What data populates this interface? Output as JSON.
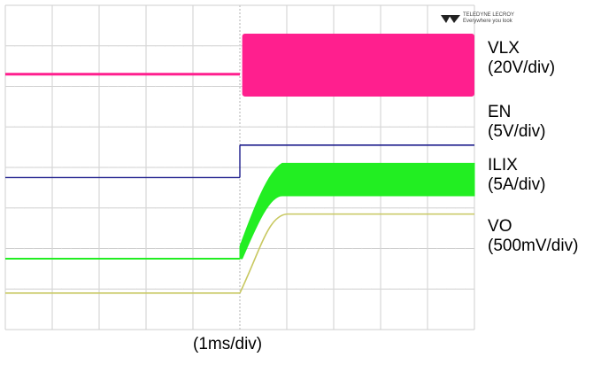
{
  "logo": {
    "brand": "TELEDYNE LECROY",
    "tagline": "Everywhere you look"
  },
  "timebase_label": "(1ms/div)",
  "channel_labels": [
    {
      "name": "VLX",
      "scale": "(20V/div)"
    },
    {
      "name": "EN",
      "scale": "(5V/div)"
    },
    {
      "name": "ILIX",
      "scale": "(5A/div)"
    },
    {
      "name": "V",
      "subscript": "O",
      "scale": "(500mV/div)"
    }
  ],
  "colors": {
    "vlx": "#ff1f8e",
    "en": "#1c1c8c",
    "ilix": "#22ee22",
    "vo": "#c8c860",
    "grid": "#cfcfcf"
  },
  "chart_data": {
    "type": "line",
    "grid": true,
    "x_divisions": 10,
    "y_divisions": 8,
    "series": [
      {
        "name": "VLX",
        "segments": [
          {
            "x": [
              0,
              5
            ],
            "y": [
              6.3,
              6.3
            ]
          },
          {
            "x": [
              5,
              10
            ],
            "y_band": [
              5.75,
              7.3
            ]
          }
        ]
      },
      {
        "name": "EN",
        "segments": [
          {
            "x": [
              0,
              5
            ],
            "y": [
              3.75,
              3.75
            ]
          },
          {
            "x": [
              5,
              10
            ],
            "y": [
              4.55,
              4.55
            ]
          }
        ]
      },
      {
        "name": "ILIX",
        "segments": [
          {
            "x": [
              0,
              5
            ],
            "y": [
              1.75,
              1.75
            ]
          },
          {
            "x": [
              5,
              5.9
            ],
            "ramp_y": [
              1.75,
              4.0
            ]
          },
          {
            "x": [
              5.9,
              10
            ],
            "y_band": [
              3.3,
              4.1
            ]
          }
        ]
      },
      {
        "name": "Vo",
        "segments": [
          {
            "x": [
              0,
              5
            ],
            "y": [
              0.9,
              0.9
            ]
          },
          {
            "x": [
              5,
              6.0
            ],
            "ramp_y": [
              0.9,
              2.85
            ]
          },
          {
            "x": [
              6.0,
              10
            ],
            "y": [
              2.85,
              2.85
            ]
          }
        ]
      }
    ]
  }
}
